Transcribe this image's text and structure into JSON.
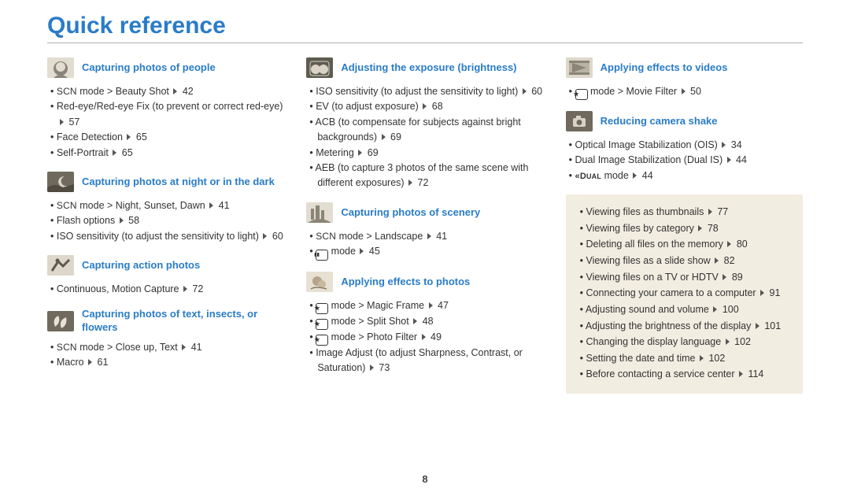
{
  "title": "Quick reference",
  "page_number": "8",
  "columns": [
    {
      "sections": [
        {
          "icon": "face",
          "title": "Capturing photos of people",
          "items": [
            {
              "prefix_mode": "scn",
              "text": " mode > Beauty Shot ",
              "page": "42"
            },
            {
              "text": "Red-eye/Red-eye Fix (to prevent or correct red-eye) ",
              "page": "57"
            },
            {
              "text": "Face Detection ",
              "page": "65"
            },
            {
              "text": "Self-Portrait ",
              "page": "65"
            }
          ]
        },
        {
          "icon": "night",
          "title": "Capturing photos at night or in the dark",
          "items": [
            {
              "prefix_mode": "scn",
              "text": " mode > Night, Sunset, Dawn ",
              "page": "41"
            },
            {
              "text": "Flash options ",
              "page": "58"
            },
            {
              "text": "ISO sensitivity (to adjust the sensitivity to light) ",
              "page": "60"
            }
          ]
        },
        {
          "icon": "action",
          "title": "Capturing action photos",
          "items": [
            {
              "text": "Continuous, Motion Capture ",
              "page": "72"
            }
          ]
        },
        {
          "icon": "macro",
          "title": "Capturing photos of text, insects, or flowers",
          "items": [
            {
              "prefix_mode": "scn",
              "text": " mode > Close up, Text ",
              "page": "41"
            },
            {
              "text": "Macro ",
              "page": "61"
            }
          ]
        }
      ]
    },
    {
      "sections": [
        {
          "icon": "exposure",
          "title": "Adjusting the exposure (brightness)",
          "items": [
            {
              "text": "ISO sensitivity (to adjust the sensitivity to light) ",
              "page": "60"
            },
            {
              "text": "EV (to adjust exposure) ",
              "page": "68"
            },
            {
              "text": "ACB (to compensate for subjects against bright backgrounds) ",
              "page": "69"
            },
            {
              "text": "Metering ",
              "page": "69"
            },
            {
              "text": "AEB (to capture 3 photos of the same scene with different exposures) ",
              "page": "72"
            }
          ]
        },
        {
          "icon": "scenery",
          "title": "Capturing photos of scenery",
          "items": [
            {
              "prefix_mode": "scn",
              "text": " mode > Landscape ",
              "page": "41"
            },
            {
              "prefix_mode": "box-live",
              "text": " mode ",
              "page": "45"
            }
          ]
        },
        {
          "icon": "effects",
          "title": "Applying effects to photos",
          "items": [
            {
              "prefix_mode": "box-star",
              "text": " mode > Magic Frame ",
              "page": "47"
            },
            {
              "prefix_mode": "box-star",
              "text": " mode > Split Shot ",
              "page": "48"
            },
            {
              "prefix_mode": "box-star",
              "text": " mode > Photo Filter ",
              "page": "49"
            },
            {
              "text": "Image Adjust (to adjust Sharpness, Contrast, or Saturation) ",
              "page": "73"
            }
          ]
        }
      ]
    },
    {
      "sections": [
        {
          "icon": "video",
          "title": "Applying effects to videos",
          "items": [
            {
              "prefix_mode": "box-star",
              "text": " mode > Movie Filter ",
              "page": "50"
            }
          ]
        },
        {
          "icon": "shake",
          "title": "Reducing camera shake",
          "items": [
            {
              "text": "Optical Image Stabilization (OIS) ",
              "page": "34"
            },
            {
              "text": "Dual Image Stabilization (Dual IS) ",
              "page": "44"
            },
            {
              "prefix_mode": "dual",
              "text": " mode ",
              "page": "44"
            }
          ]
        }
      ],
      "sidebar": [
        {
          "text": "Viewing files as thumbnails ",
          "page": "77"
        },
        {
          "text": "Viewing files by category ",
          "page": "78"
        },
        {
          "text": "Deleting all files on the memory ",
          "page": "80"
        },
        {
          "text": "Viewing files as a slide show ",
          "page": "82"
        },
        {
          "text": "Viewing files on a TV or HDTV ",
          "page": "89"
        },
        {
          "text": "Connecting your camera to a computer ",
          "page": "91"
        },
        {
          "text": "Adjusting sound and volume ",
          "page": "100"
        },
        {
          "text": "Adjusting the brightness of the display ",
          "page": "101"
        },
        {
          "text": "Changing the display language ",
          "page": "102"
        },
        {
          "text": "Setting the date and time ",
          "page": "102"
        },
        {
          "text": "Before contacting a service center ",
          "page": "114"
        }
      ]
    }
  ]
}
